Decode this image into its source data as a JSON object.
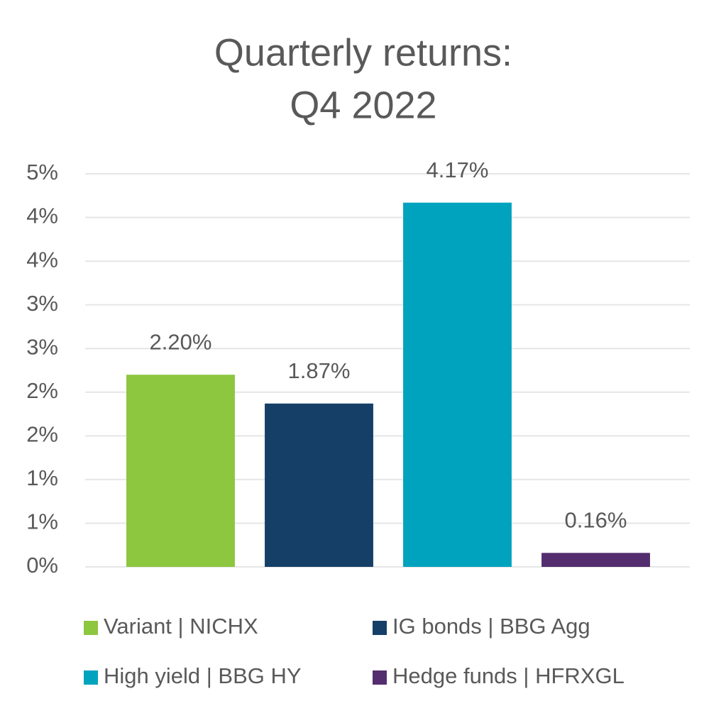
{
  "chart_data": {
    "type": "bar",
    "title": [
      "Quarterly returns:",
      "Q4 2022"
    ],
    "categories": [
      "Variant | NICHX",
      "IG bonds | BBG Agg",
      "High yield | BBG HY",
      "Hedge funds | HFRXGL"
    ],
    "values": [
      2.2,
      1.87,
      4.17,
      0.16
    ],
    "value_labels": [
      "2.20%",
      "1.87%",
      "4.17%",
      "0.16%"
    ],
    "colors": [
      "#8dc63f",
      "#153f66",
      "#00a3be",
      "#532d6d"
    ],
    "ylim": [
      0,
      4.5
    ],
    "yticks": [
      {
        "value": 0,
        "label": "0%"
      },
      {
        "value": 0.5,
        "label": "1%"
      },
      {
        "value": 1.0,
        "label": "1%"
      },
      {
        "value": 1.5,
        "label": "2%"
      },
      {
        "value": 2.0,
        "label": "2%"
      },
      {
        "value": 2.5,
        "label": "3%"
      },
      {
        "value": 3.0,
        "label": "3%"
      },
      {
        "value": 3.5,
        "label": "4%"
      },
      {
        "value": 4.0,
        "label": "4%"
      },
      {
        "value": 4.5,
        "label": "5%"
      }
    ],
    "grid": true
  }
}
